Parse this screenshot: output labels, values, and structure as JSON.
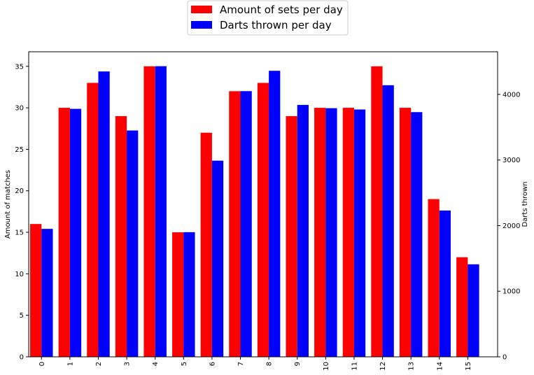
{
  "chart_data": {
    "type": "bar",
    "categories": [
      "0",
      "1",
      "2",
      "3",
      "4",
      "5",
      "6",
      "7",
      "8",
      "9",
      "10",
      "11",
      "12",
      "13",
      "14",
      "15"
    ],
    "series": [
      {
        "name": "Amount of sets per day",
        "axis": "left",
        "color": "#ff0000",
        "values": [
          16,
          30,
          33,
          29,
          35,
          15,
          27,
          32,
          33,
          29,
          30,
          30,
          35,
          30,
          19,
          12
        ]
      },
      {
        "name": "Darts thrown per day",
        "axis": "right",
        "color": "#0000ff",
        "values": [
          1950,
          3780,
          4350,
          3450,
          4430,
          1900,
          2990,
          4050,
          4360,
          3840,
          3790,
          3770,
          4140,
          3730,
          2230,
          1410
        ]
      }
    ],
    "ylabel": "Amount of matches",
    "ylabel_right": "Darts thrown",
    "ylim": [
      0,
      36.75
    ],
    "ylim_right": [
      0,
      4650
    ],
    "yticks": [
      0,
      5,
      10,
      15,
      20,
      25,
      30,
      35
    ],
    "yticks_right": [
      0,
      1000,
      2000,
      3000,
      4000
    ],
    "legend_position": "top-center",
    "grid": false
  }
}
